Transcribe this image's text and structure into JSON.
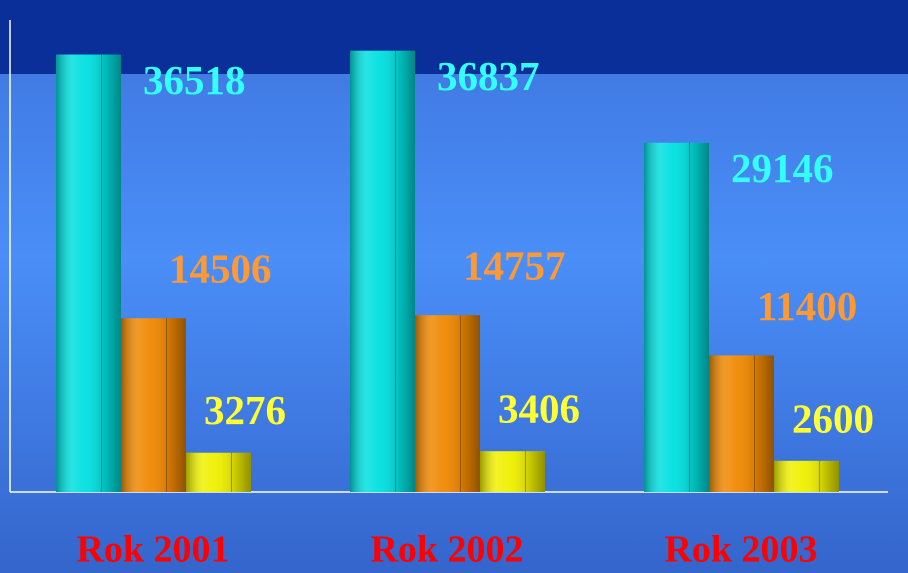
{
  "chart_data": {
    "type": "bar",
    "categories": [
      "Rok 2001",
      "Rok 2002",
      "Rok 2003"
    ],
    "series": [
      {
        "color": "#00e0e0",
        "label_color": "#33ffff",
        "values": [
          36518,
          36837,
          29146
        ]
      },
      {
        "color": "#f08800",
        "label_color": "#ff9933",
        "values": [
          14506,
          14757,
          11400
        ]
      },
      {
        "color": "#f0f000",
        "label_color": "#ffff33",
        "values": [
          3276,
          3406,
          2600
        ]
      }
    ],
    "ylim": [
      0,
      39400
    ],
    "grid": false
  }
}
